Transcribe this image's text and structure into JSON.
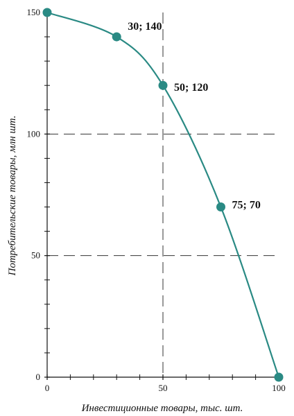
{
  "chart_data": {
    "type": "line",
    "title": "",
    "xlabel": "Инвестиционные товары, тыс. шт.",
    "ylabel": "Потребительские товары, млн шт.",
    "xlim": [
      0,
      100
    ],
    "ylim": [
      0,
      150
    ],
    "x_ticks": [
      0,
      50,
      100
    ],
    "y_ticks": [
      0,
      50,
      100,
      150
    ],
    "x_tick_labels": [
      "0",
      "50",
      "100"
    ],
    "y_tick_labels": [
      "0",
      "50",
      "100",
      "150"
    ],
    "grid": {
      "dashed_horizontal_at": [
        50,
        100
      ],
      "dashed_vertical_at": [
        50
      ],
      "style": "dashed"
    },
    "legend": "none",
    "series": [
      {
        "name": "",
        "color": "#2a8a84",
        "x": [
          0,
          30,
          50,
          75,
          100
        ],
        "y": [
          150,
          140,
          120,
          70,
          0
        ]
      }
    ],
    "annotations": [
      {
        "x": 30,
        "y": 140,
        "text": "30; 140"
      },
      {
        "x": 50,
        "y": 120,
        "text": "50; 120"
      },
      {
        "x": 75,
        "y": 70,
        "text": "75; 70"
      }
    ]
  }
}
